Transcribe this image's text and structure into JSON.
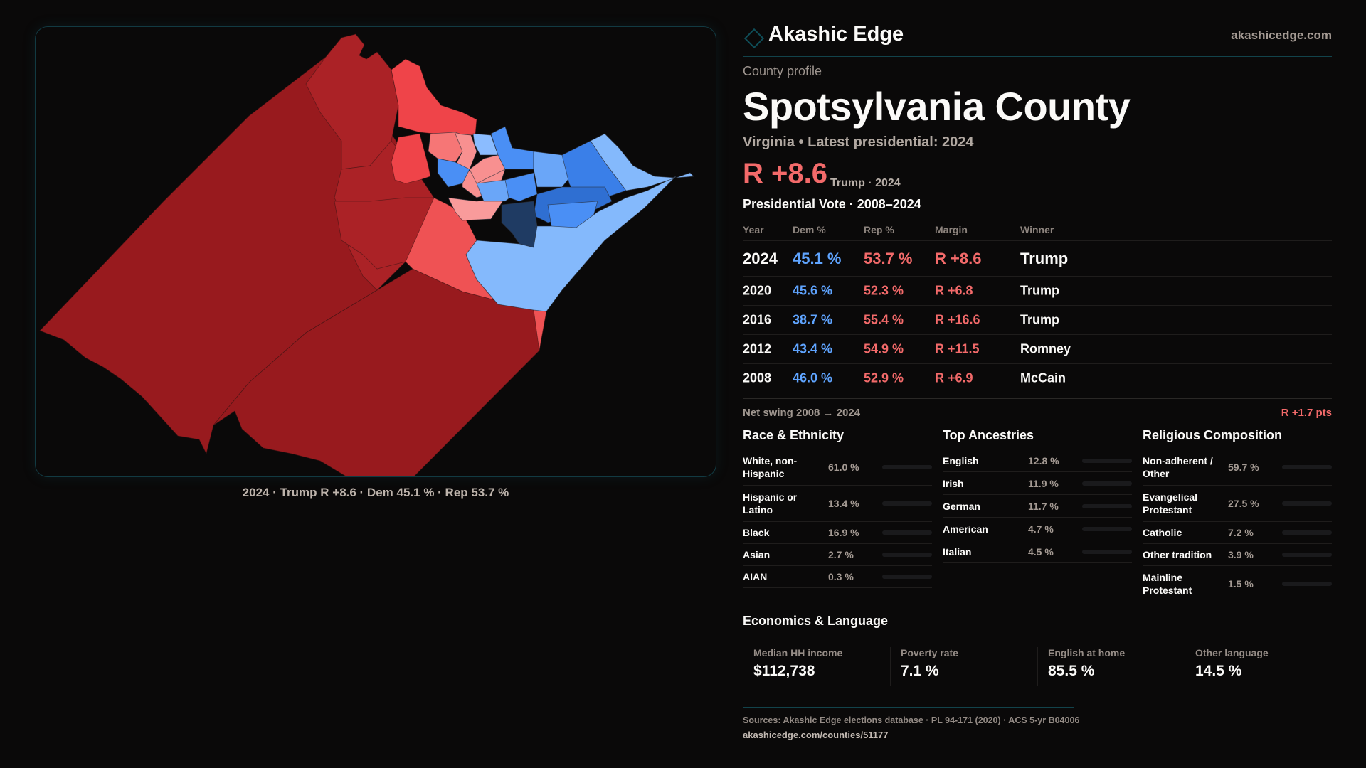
{
  "brand": {
    "name": "Akashic Edge",
    "site": "akashicedge.com",
    "logo_icon": "diamond-outline-icon"
  },
  "profile": {
    "eyebrow": "County profile",
    "county": "Spotsylvania County",
    "subtitle": "Virginia • Latest presidential: 2024",
    "headline_margin": "R +8.6",
    "headline_note": "Trump · 2024"
  },
  "colors": {
    "dem": "#5fa4ff",
    "rep": "#f36a6a",
    "accent": "#12434b"
  },
  "map": {
    "caption": "2024 · Trump R +8.6 · Dem 45.1 % · Rep 53.7 %"
  },
  "presidential": {
    "title": "Presidential Vote · 2008–2024",
    "headers": {
      "year": "Year",
      "dem": "Dem %",
      "rep": "Rep %",
      "margin": "Margin",
      "winner": "Winner"
    },
    "rows": [
      {
        "year": "2024",
        "dem": "45.1 %",
        "rep": "53.7 %",
        "margin": "R +8.6",
        "winner": "Trump"
      },
      {
        "year": "2020",
        "dem": "45.6 %",
        "rep": "52.3 %",
        "margin": "R +6.8",
        "winner": "Trump"
      },
      {
        "year": "2016",
        "dem": "38.7 %",
        "rep": "55.4 %",
        "margin": "R +16.6",
        "winner": "Trump"
      },
      {
        "year": "2012",
        "dem": "43.4 %",
        "rep": "54.9 %",
        "margin": "R +11.5",
        "winner": "Romney"
      },
      {
        "year": "2008",
        "dem": "46.0 %",
        "rep": "52.9 %",
        "margin": "R +6.9",
        "winner": "McCain"
      }
    ],
    "swing_label": "Net swing 2008 → 2024",
    "swing_value": "R +1.7 pts"
  },
  "race": {
    "title": "Race & Ethnicity",
    "items": [
      {
        "label": "White, non-Hispanic",
        "pct": "61.0 %",
        "value": 61.0,
        "color": "#7f8a99"
      },
      {
        "label": "Hispanic or Latino",
        "pct": "13.4 %",
        "value": 13.4,
        "color": "#d99a1e"
      },
      {
        "label": "Black",
        "pct": "16.9 %",
        "value": 16.9,
        "color": "#9a7ee8"
      },
      {
        "label": "Asian",
        "pct": "2.7 %",
        "value": 2.7,
        "color": "#2fb37f"
      },
      {
        "label": "AIAN",
        "pct": "0.3 %",
        "value": 0.3,
        "color": "#d8702a"
      }
    ]
  },
  "ancestry": {
    "title": "Top Ancestries",
    "items": [
      {
        "label": "English",
        "pct": "12.8 %",
        "value": 12.8,
        "color": "#7f8a99"
      },
      {
        "label": "Irish",
        "pct": "11.9 %",
        "value": 11.9,
        "color": "#7f8a99"
      },
      {
        "label": "German",
        "pct": "11.7 %",
        "value": 11.7,
        "color": "#7f8a99"
      },
      {
        "label": "American",
        "pct": "4.7 %",
        "value": 4.7,
        "color": "#7f8a99"
      },
      {
        "label": "Italian",
        "pct": "4.5 %",
        "value": 4.5,
        "color": "#7f8a99"
      }
    ]
  },
  "religion": {
    "title": "Religious Composition",
    "items": [
      {
        "label": "Non-adherent / Other",
        "pct": "59.7 %",
        "value": 59.7,
        "color": "#6e7584"
      },
      {
        "label": "Evangelical Protestant",
        "pct": "27.5 %",
        "value": 27.5,
        "color": "#e25b5b"
      },
      {
        "label": "Catholic",
        "pct": "7.2 %",
        "value": 7.2,
        "color": "#e2a21e"
      },
      {
        "label": "Other tradition",
        "pct": "3.9 %",
        "value": 3.9,
        "color": "#8a93a3"
      },
      {
        "label": "Mainline Protestant",
        "pct": "1.5 %",
        "value": 1.5,
        "color": "#4f8fe0"
      }
    ]
  },
  "economics": {
    "title": "Economics & Language",
    "cards": [
      {
        "label": "Median HH income",
        "value": "$112,738"
      },
      {
        "label": "Poverty rate",
        "value": "7.1 %"
      },
      {
        "label": "English at home",
        "value": "85.5 %"
      },
      {
        "label": "Other language",
        "value": "14.5 %"
      }
    ]
  },
  "sources": {
    "text": "Sources: Akashic Edge elections database · PL 94-171 (2020) · ACS 5-yr B04006",
    "url": "akashicedge.com/counties/51177"
  }
}
